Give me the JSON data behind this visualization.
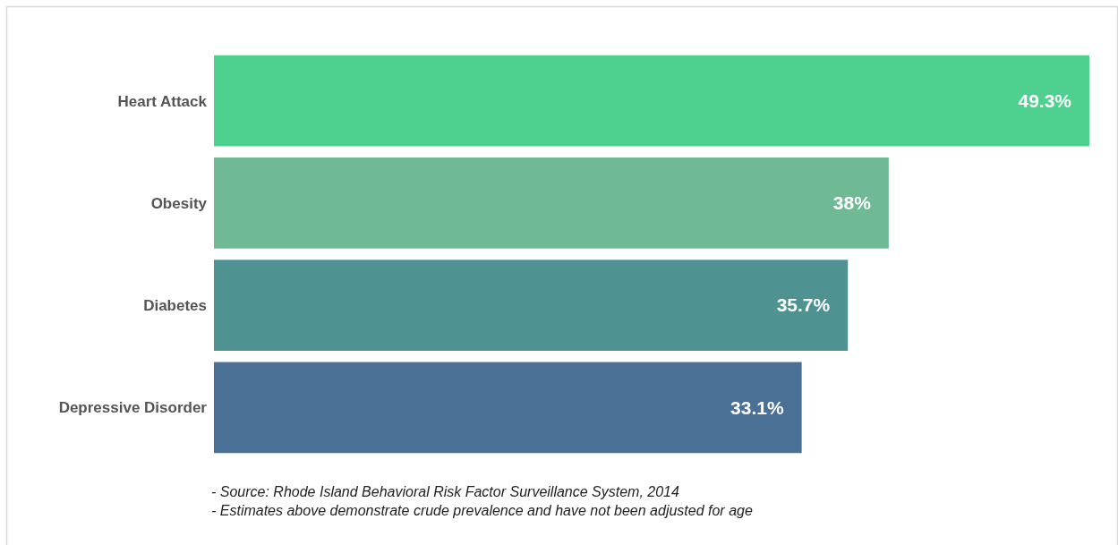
{
  "chart_data": {
    "type": "bar",
    "orientation": "horizontal",
    "categories": [
      "Heart Attack",
      "Obesity",
      "Diabetes",
      "Depressive Disorder"
    ],
    "values": [
      49.3,
      38,
      35.7,
      33.1
    ],
    "colors": [
      "#4ed18e",
      "#6fba95",
      "#4e9292",
      "#4a7096"
    ],
    "value_labels": [
      "49.3%",
      "38%",
      "35.7%",
      "33.1%"
    ],
    "xlim": [
      0,
      49.3
    ],
    "tick_labels": "y",
    "annotations": [
      "- Source: Rhode Island Behavioral Risk Factor Surveillance System, 2014",
      "- Estimates above demonstrate crude prevalence and have not been adjusted for age"
    ]
  }
}
